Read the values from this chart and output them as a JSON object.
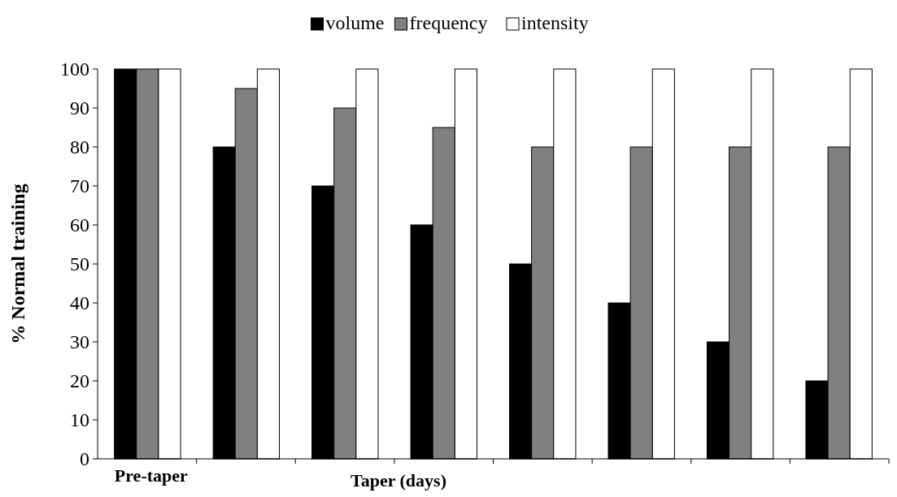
{
  "chart_data": {
    "type": "bar",
    "xlabel": "Taper (days)",
    "ylabel": "% Normal training",
    "categories": [
      "Pre-taper",
      null,
      null,
      null,
      null,
      null,
      null,
      null
    ],
    "series": [
      {
        "name": "volume",
        "color": "#000000",
        "values": [
          100,
          80,
          70,
          60,
          50,
          40,
          30,
          20
        ]
      },
      {
        "name": "frequency",
        "color": "#808080",
        "values": [
          100,
          95,
          90,
          85,
          80,
          80,
          80,
          80
        ]
      },
      {
        "name": "intensity",
        "color": "#ffffff",
        "values": [
          100,
          100,
          100,
          100,
          100,
          100,
          100,
          100
        ]
      }
    ],
    "ylim": [
      0,
      100
    ],
    "yticks": [
      0,
      10,
      20,
      30,
      40,
      50,
      60,
      70,
      80,
      90,
      100
    ],
    "grid": false,
    "legend": "top"
  }
}
